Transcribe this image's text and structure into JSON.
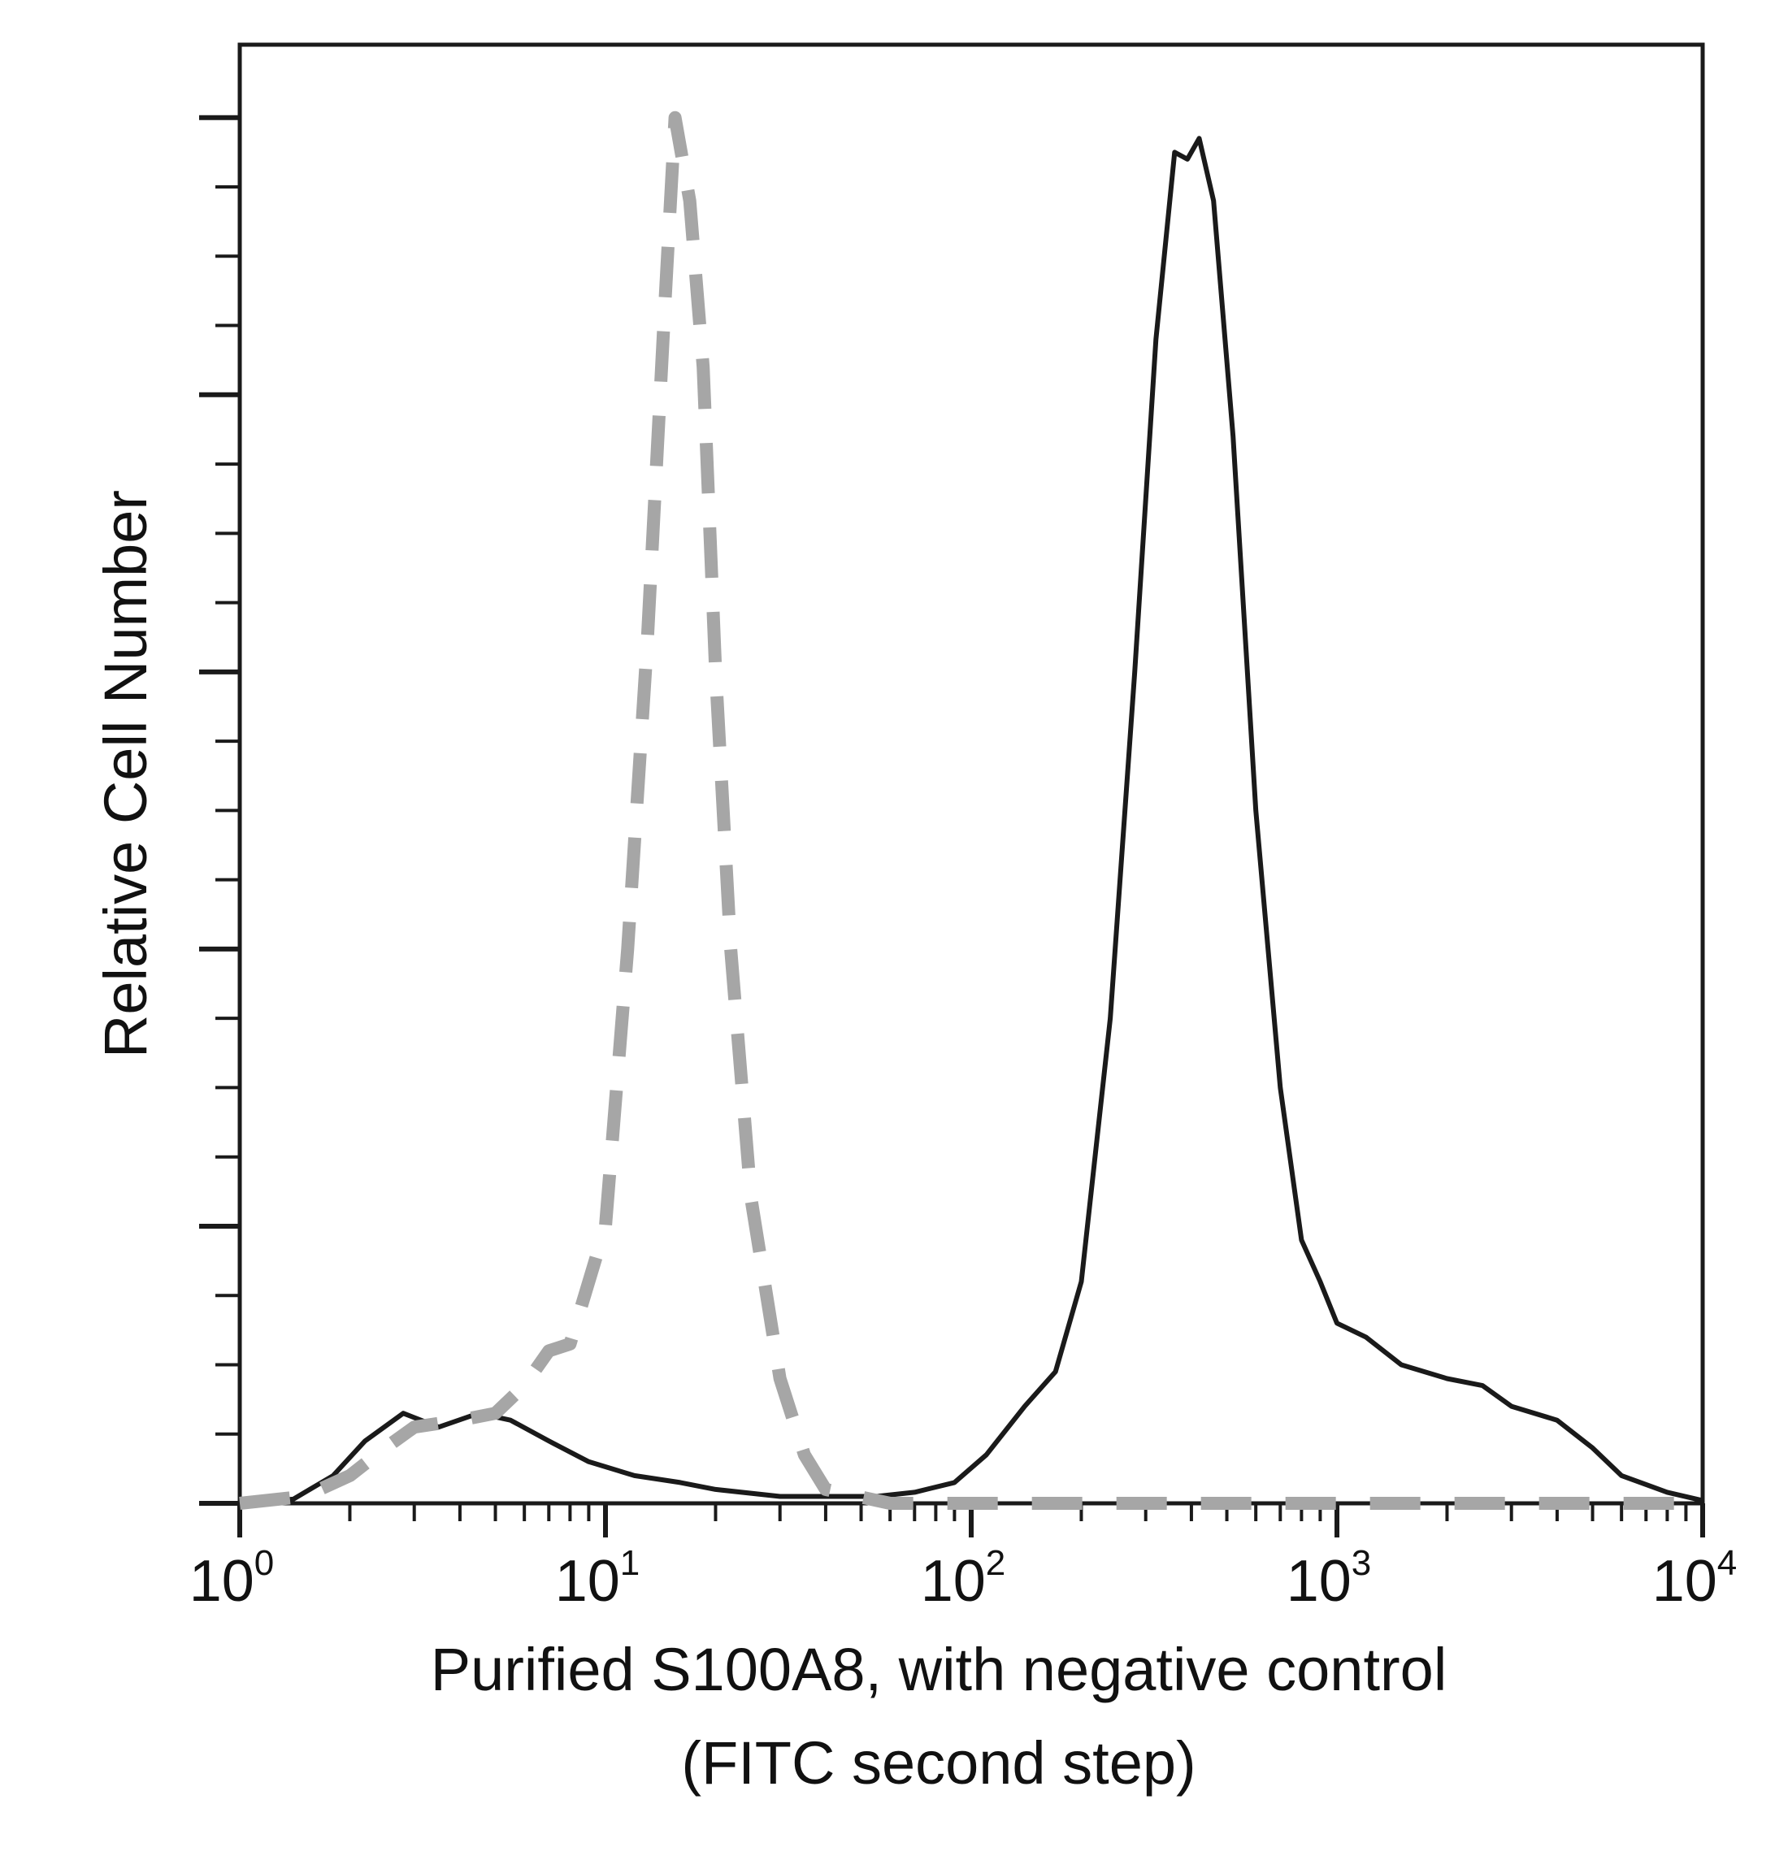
{
  "chart_data": {
    "type": "line",
    "title": "",
    "xlabel": "Purified S100A8, with negative control",
    "xlabel_line2": "(FITC second step)",
    "ylabel": "Relative Cell Number",
    "x_scale": "log",
    "xlim": [
      1,
      10000
    ],
    "ylim": [
      0,
      1
    ],
    "x_ticks": [
      {
        "value": 1,
        "base": "10",
        "exp": "0"
      },
      {
        "value": 10,
        "base": "10",
        "exp": "1"
      },
      {
        "value": 100,
        "base": "10",
        "exp": "2"
      },
      {
        "value": 1000,
        "base": "10",
        "exp": "3"
      },
      {
        "value": 10000,
        "base": "10",
        "exp": "4"
      }
    ],
    "y_major_ticks": [
      0,
      0.2,
      0.4,
      0.6,
      0.8,
      1.0
    ],
    "y_minor_ticks": [
      0.05,
      0.1,
      0.15,
      0.25,
      0.3,
      0.35,
      0.45,
      0.5,
      0.55,
      0.65,
      0.7,
      0.75,
      0.85,
      0.9,
      0.95
    ],
    "grid": false,
    "legend": "none",
    "series": [
      {
        "style": "solid",
        "color": "#1a1a1a",
        "x": [
          1,
          1.4,
          1.8,
          2.2,
          2.8,
          3.5,
          4.5,
          5.5,
          7,
          9,
          12,
          16,
          20,
          30,
          40,
          55,
          70,
          90,
          110,
          140,
          170,
          200,
          240,
          280,
          320,
          360,
          390,
          420,
          460,
          520,
          600,
          700,
          800,
          900,
          1000,
          1200,
          1500,
          2000,
          2500,
          3000,
          4000,
          5000,
          6000,
          8000,
          10000
        ],
        "y": [
          0.0,
          0.003,
          0.02,
          0.045,
          0.065,
          0.055,
          0.065,
          0.06,
          0.045,
          0.03,
          0.02,
          0.015,
          0.01,
          0.005,
          0.005,
          0.005,
          0.008,
          0.015,
          0.035,
          0.07,
          0.095,
          0.16,
          0.35,
          0.6,
          0.84,
          0.975,
          0.97,
          0.985,
          0.94,
          0.77,
          0.5,
          0.3,
          0.19,
          0.16,
          0.13,
          0.12,
          0.1,
          0.09,
          0.085,
          0.07,
          0.06,
          0.04,
          0.02,
          0.008,
          0.002
        ]
      },
      {
        "style": "dashed",
        "color": "#a6a6a6",
        "x": [
          1,
          1.5,
          2,
          2.5,
          3,
          4,
          5,
          6,
          7,
          8,
          10,
          11.5,
          13,
          14.5,
          15.5,
          17,
          18.5,
          20,
          22,
          25,
          30,
          35,
          40,
          60,
          100,
          200,
          500,
          1000,
          3000,
          10000
        ],
        "y": [
          0.0,
          0.005,
          0.02,
          0.04,
          0.055,
          0.06,
          0.065,
          0.085,
          0.11,
          0.115,
          0.2,
          0.4,
          0.62,
          0.86,
          1.0,
          0.94,
          0.82,
          0.6,
          0.4,
          0.22,
          0.09,
          0.035,
          0.01,
          0.0,
          0.0,
          0.0,
          0.0,
          0.0,
          0.0,
          0.0
        ]
      }
    ]
  }
}
